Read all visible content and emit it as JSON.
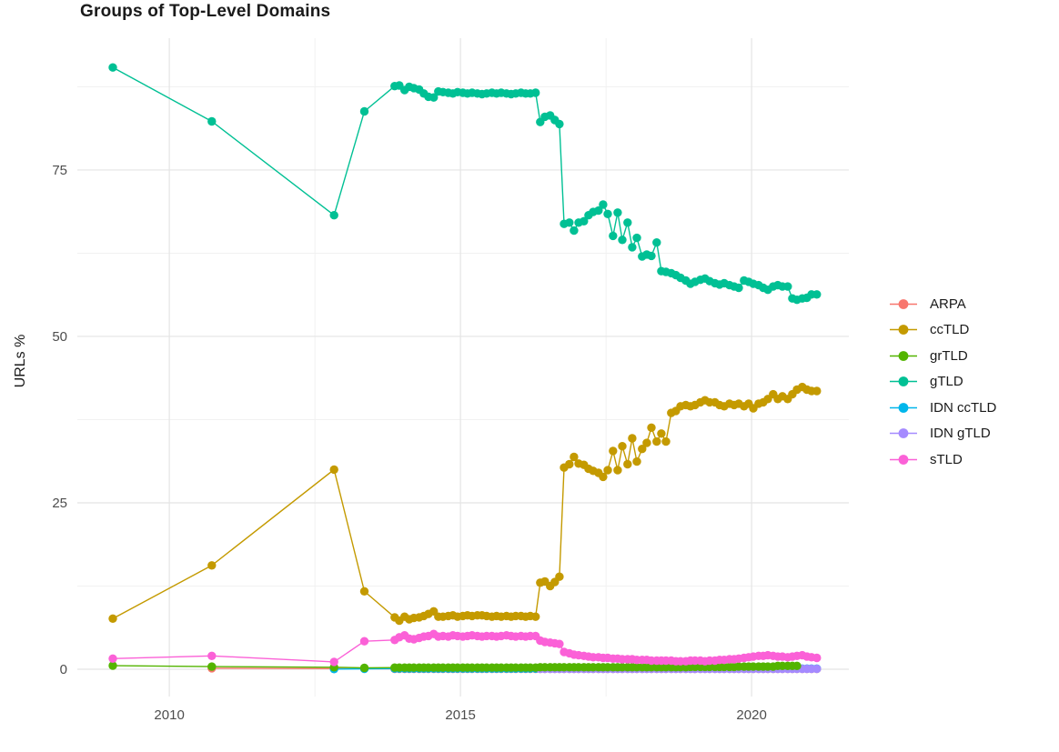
{
  "title": "Groups of Top-Level Domains",
  "y_axis": {
    "label": "URLs %",
    "ticks": [
      "0",
      "25",
      "50",
      "75"
    ],
    "tick_values": [
      0,
      25,
      50,
      75
    ]
  },
  "x_axis": {
    "ticks": [
      "2010",
      "2015",
      "2020"
    ],
    "tick_values": [
      2010,
      2015,
      2020
    ]
  },
  "legend": {
    "items": [
      "ARPA",
      "ccTLD",
      "grTLD",
      "gTLD",
      "IDN ccTLD",
      "IDN gTLD",
      "sTLD"
    ]
  },
  "colors": {
    "grid_major": "#e4e4e4",
    "grid_minor": "#f1f1f1",
    "tick_text": "#4d4d4d"
  },
  "chart_data": {
    "type": "line",
    "title": "Groups of Top-Level Domains",
    "xlabel": "",
    "ylabel": "URLs %",
    "xlim": [
      2008.42,
      2021.67
    ],
    "ylim": [
      -4.1,
      94.8
    ],
    "x_major": [
      2010,
      2015,
      2020
    ],
    "x_minor": [
      2012.5,
      2017.5
    ],
    "y_major": [
      0,
      25,
      50,
      75
    ],
    "y_minor": [
      12.5,
      37.5,
      62.5,
      87.5
    ],
    "grid": true,
    "marker": "circle",
    "legend_position": "right",
    "x_all": [
      2009.03,
      2010.73,
      2012.83,
      2013.35,
      2013.87,
      2013.95,
      2014.04,
      2014.12,
      2014.2,
      2014.29,
      2014.37,
      2014.45,
      2014.54,
      2014.62,
      2014.7,
      2014.79,
      2014.87,
      2014.95,
      2015.04,
      2015.12,
      2015.2,
      2015.29,
      2015.37,
      2015.45,
      2015.54,
      2015.62,
      2015.7,
      2015.79,
      2015.87,
      2015.95,
      2016.04,
      2016.12,
      2016.2,
      2016.29,
      2016.37,
      2016.45,
      2016.54,
      2016.62,
      2016.7,
      2016.78,
      2016.87,
      2016.95,
      2017.03,
      2017.12,
      2017.2,
      2017.28,
      2017.37,
      2017.45,
      2017.53,
      2017.62,
      2017.7,
      2017.78,
      2017.87,
      2017.95,
      2018.03,
      2018.12,
      2018.2,
      2018.28,
      2018.37,
      2018.45,
      2018.53,
      2018.62,
      2018.7,
      2018.78,
      2018.87,
      2018.95,
      2019.03,
      2019.12,
      2019.2,
      2019.28,
      2019.37,
      2019.45,
      2019.53,
      2019.62,
      2019.7,
      2019.78,
      2019.87,
      2019.95,
      2020.03,
      2020.12,
      2020.2,
      2020.28,
      2020.37,
      2020.45,
      2020.53,
      2020.62,
      2020.7,
      2020.78,
      2020.87,
      2020.95,
      2021.03,
      2021.12
    ],
    "series": [
      {
        "name": "ARPA",
        "color": "#F8766D",
        "x_offset": 1,
        "y": [
          0.15,
          0.1,
          0.1,
          0.05,
          0.05,
          0.05,
          0.05,
          0.05,
          0.05,
          0.05,
          0.05,
          0.05,
          0.05,
          0.05,
          0.05,
          0.05,
          0.05,
          0.05,
          0.05,
          0.05,
          0.05,
          0.05,
          0.05,
          0.05,
          0.05,
          0.05,
          0.05,
          0.05,
          0.05,
          0.05,
          0.05,
          0.05,
          0.05,
          0.05,
          0.05,
          0.05,
          0.05,
          0.05,
          0.05,
          0.05,
          0.05,
          0.05,
          0.05,
          0.05,
          0.05,
          0.05,
          0.05,
          0.05,
          0.05,
          0.05,
          0.05,
          0.05,
          0.05,
          0.05,
          0.05,
          0.05,
          0.05,
          0.05,
          0.05,
          0.05,
          0.05,
          0.05,
          0.05,
          0.05,
          0.05,
          0.05,
          0.05,
          0.05,
          0.05,
          0.05,
          0.05,
          0.05,
          0.05,
          0.05,
          0.05,
          0.05,
          0.05,
          0.05,
          0.05,
          0.05,
          0.05,
          0.05,
          0.05,
          0.05,
          0.05,
          0.05,
          0.05,
          0.05,
          0.05,
          0.05,
          0.05
        ]
      },
      {
        "name": "ccTLD",
        "color": "#C49A00",
        "x_offset": 0,
        "y": [
          7.6,
          15.6,
          30.0,
          11.7,
          7.8,
          7.3,
          7.9,
          7.5,
          7.7,
          7.8,
          8.0,
          8.3,
          8.7,
          7.9,
          7.9,
          8.0,
          8.1,
          7.9,
          8.0,
          8.1,
          8.0,
          8.1,
          8.1,
          8.0,
          7.9,
          8.0,
          7.9,
          8.0,
          7.9,
          8.0,
          8.0,
          7.9,
          8.0,
          7.9,
          13.0,
          13.2,
          12.5,
          13.1,
          13.9,
          30.3,
          30.8,
          31.9,
          30.9,
          30.7,
          30.1,
          29.8,
          29.5,
          28.9,
          29.9,
          32.8,
          29.9,
          33.5,
          30.8,
          34.7,
          31.2,
          33.1,
          34.0,
          36.3,
          34.2,
          35.4,
          34.2,
          38.5,
          38.8,
          39.5,
          39.7,
          39.5,
          39.7,
          40.1,
          40.4,
          40.1,
          40.1,
          39.7,
          39.5,
          39.9,
          39.7,
          39.9,
          39.5,
          39.9,
          39.2,
          39.9,
          40.1,
          40.6,
          41.3,
          40.6,
          41.0,
          40.6,
          41.3,
          42.0,
          42.4,
          42.0,
          41.8,
          41.8
        ]
      },
      {
        "name": "IDN ccTLD",
        "color": "#00B6EB",
        "x_offset": 2,
        "y": [
          0.02,
          0.05,
          0.1,
          0.1,
          0.1,
          0.1,
          0.1,
          0.1,
          0.1,
          0.1,
          0.1,
          0.1,
          0.1,
          0.1,
          0.1,
          0.1,
          0.1,
          0.1,
          0.1,
          0.1,
          0.1,
          0.1,
          0.1,
          0.1,
          0.1,
          0.1,
          0.1,
          0.1,
          0.1,
          0.1,
          0.1,
          0.1,
          0.1,
          0.1,
          0.1,
          0.1,
          0.1,
          0.1,
          0.1,
          0.1,
          0.1,
          0.1,
          0.1,
          0.1,
          0.1,
          0.1,
          0.1,
          0.1,
          0.1,
          0.1,
          0.1,
          0.1,
          0.1,
          0.1,
          0.1,
          0.1,
          0.1,
          0.1,
          0.1,
          0.1,
          0.1,
          0.1,
          0.1,
          0.1,
          0.1,
          0.1,
          0.1,
          0.1,
          0.1,
          0.1,
          0.1,
          0.1,
          0.1,
          0.1,
          0.1,
          0.1,
          0.1,
          0.1,
          0.1,
          0.1,
          0.1,
          0.1,
          0.1,
          0.1,
          0.1,
          0.1,
          0.1,
          0.1,
          0.1,
          0.1
        ]
      },
      {
        "name": "IDN gTLD",
        "color": "#A58AFF",
        "x_offset": 34,
        "y": [
          0.05,
          0.05,
          0.05,
          0.05,
          0.05,
          0.05,
          0.05,
          0.05,
          0.05,
          0.05,
          0.05,
          0.05,
          0.05,
          0.05,
          0.05,
          0.05,
          0.05,
          0.05,
          0.05,
          0.05,
          0.05,
          0.05,
          0.05,
          0.05,
          0.05,
          0.05,
          0.05,
          0.05,
          0.05,
          0.05,
          0.05,
          0.05,
          0.05,
          0.05,
          0.05,
          0.05,
          0.05,
          0.05,
          0.05,
          0.05,
          0.05,
          0.05,
          0.05,
          0.05,
          0.05,
          0.05,
          0.05,
          0.05,
          0.05,
          0.05,
          0.05,
          0.05,
          0.05,
          0.05,
          0.05,
          0.05,
          0.05,
          0.05
        ]
      },
      {
        "name": "grTLD",
        "color": "#53B400",
        "x_offset": 0,
        "y": [
          0.55,
          0.4,
          0.3,
          0.2,
          0.25,
          0.25,
          0.25,
          0.25,
          0.25,
          0.25,
          0.25,
          0.25,
          0.25,
          0.25,
          0.25,
          0.25,
          0.25,
          0.25,
          0.25,
          0.25,
          0.25,
          0.25,
          0.25,
          0.25,
          0.25,
          0.25,
          0.25,
          0.25,
          0.25,
          0.25,
          0.25,
          0.25,
          0.25,
          0.25,
          0.3,
          0.3,
          0.3,
          0.3,
          0.3,
          0.3,
          0.3,
          0.3,
          0.3,
          0.3,
          0.3,
          0.3,
          0.3,
          0.3,
          0.3,
          0.3,
          0.3,
          0.3,
          0.3,
          0.3,
          0.3,
          0.3,
          0.3,
          0.3,
          0.3,
          0.3,
          0.3,
          0.3,
          0.3,
          0.3,
          0.3,
          0.35,
          0.35,
          0.35,
          0.35,
          0.35,
          0.35,
          0.35,
          0.35,
          0.35,
          0.35,
          0.4,
          0.4,
          0.4,
          0.4,
          0.4,
          0.4,
          0.4,
          0.4,
          0.5,
          0.5,
          0.5,
          0.5,
          0.5
        ]
      },
      {
        "name": "gTLD",
        "color": "#00C094",
        "x_offset": 0,
        "y": [
          90.4,
          82.3,
          68.2,
          83.8,
          87.6,
          87.7,
          87.0,
          87.5,
          87.3,
          87.1,
          86.5,
          86.0,
          85.9,
          86.8,
          86.7,
          86.6,
          86.5,
          86.7,
          86.6,
          86.5,
          86.6,
          86.5,
          86.4,
          86.5,
          86.6,
          86.5,
          86.6,
          86.5,
          86.4,
          86.5,
          86.6,
          86.5,
          86.5,
          86.6,
          82.2,
          83.0,
          83.2,
          82.5,
          81.9,
          66.9,
          67.1,
          65.9,
          67.1,
          67.3,
          68.2,
          68.7,
          68.9,
          69.8,
          68.4,
          65.1,
          68.6,
          64.5,
          67.1,
          63.4,
          64.8,
          62.0,
          62.3,
          62.1,
          64.1,
          59.8,
          59.7,
          59.5,
          59.2,
          58.8,
          58.4,
          57.9,
          58.2,
          58.5,
          58.7,
          58.3,
          58.0,
          57.8,
          58.0,
          57.7,
          57.5,
          57.3,
          58.4,
          58.2,
          57.9,
          57.7,
          57.3,
          57.0,
          57.5,
          57.7,
          57.5,
          57.5,
          55.7,
          55.5,
          55.7,
          55.8,
          56.3,
          56.3
        ]
      },
      {
        "name": "sTLD",
        "color": "#FB61D7",
        "x_offset": 0,
        "y": [
          1.6,
          2.0,
          1.1,
          4.2,
          4.4,
          4.8,
          5.1,
          4.6,
          4.5,
          4.7,
          4.9,
          5.0,
          5.3,
          4.9,
          5.0,
          4.9,
          5.1,
          5.0,
          4.9,
          5.0,
          5.1,
          5.0,
          4.9,
          5.0,
          5.0,
          4.9,
          5.0,
          5.1,
          5.0,
          4.9,
          5.0,
          4.9,
          5.0,
          5.0,
          4.3,
          4.1,
          4.0,
          3.9,
          3.8,
          2.6,
          2.4,
          2.2,
          2.1,
          2.0,
          1.9,
          1.8,
          1.8,
          1.7,
          1.7,
          1.6,
          1.6,
          1.5,
          1.5,
          1.5,
          1.4,
          1.4,
          1.4,
          1.3,
          1.3,
          1.3,
          1.3,
          1.3,
          1.2,
          1.2,
          1.2,
          1.3,
          1.3,
          1.3,
          1.2,
          1.3,
          1.3,
          1.4,
          1.4,
          1.5,
          1.5,
          1.6,
          1.7,
          1.8,
          1.9,
          2.0,
          2.0,
          2.1,
          2.0,
          1.9,
          1.9,
          1.8,
          1.9,
          2.0,
          2.1,
          1.9,
          1.8,
          1.7
        ]
      }
    ]
  }
}
